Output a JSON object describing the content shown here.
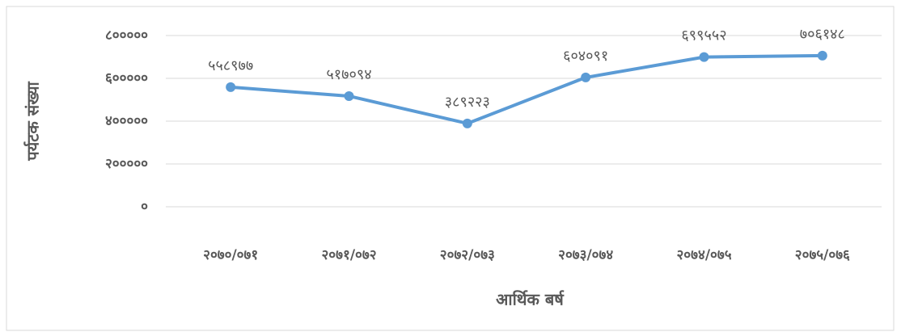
{
  "chart_data": {
    "type": "line",
    "x_label": "आर्थिक बर्ष",
    "y_label": "पर्यटक संख्या",
    "categories": [
      "२०७०/०७१",
      "२०७१/०७२",
      "२०७२/०७३",
      "२०७३/०७४",
      "२०७४/०७५",
      "२०७५/०७६"
    ],
    "series": [
      {
        "name": "पर्यटक संख्या",
        "color": "#5b9bd5",
        "values": [
          558977,
          517094,
          389223,
          604091,
          699552,
          706148
        ],
        "value_labels": [
          "५५८९७७",
          "५१७०९४",
          "३८९२२३",
          "६०४०९१",
          "६९९५५२",
          "७०६१४८"
        ]
      }
    ],
    "ylim": [
      0,
      800000
    ],
    "yticks": [
      {
        "value": 0,
        "label": "०"
      },
      {
        "value": 200000,
        "label": "२०००००"
      },
      {
        "value": 400000,
        "label": "४०००००"
      },
      {
        "value": 600000,
        "label": "६०००००"
      },
      {
        "value": 800000,
        "label": "८०००००"
      }
    ],
    "grid": true
  }
}
